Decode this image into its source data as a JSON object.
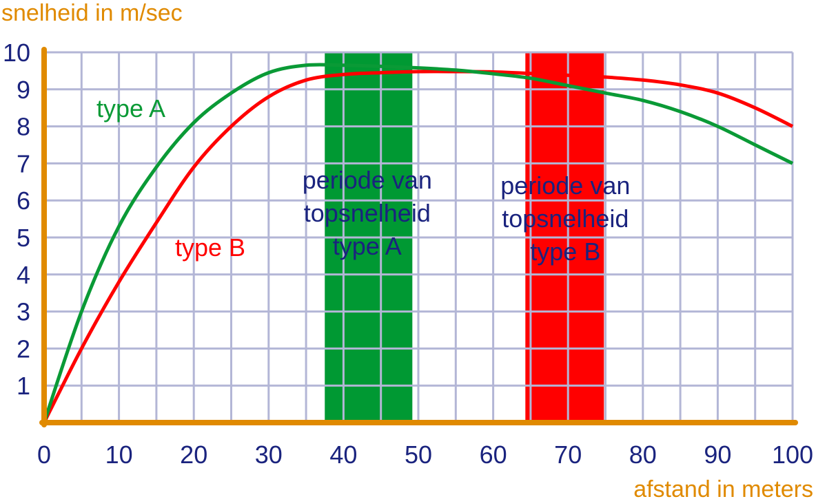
{
  "chart_data": {
    "type": "line",
    "ylabel": "snelheid in m/sec",
    "xlabel": "afstand in meters",
    "xlim": [
      0,
      100
    ],
    "ylim": [
      0,
      10
    ],
    "x_ticks": [
      "0",
      "10",
      "20",
      "30",
      "40",
      "50",
      "60",
      "70",
      "80",
      "90",
      "100"
    ],
    "y_ticks": [
      "1",
      "2",
      "3",
      "4",
      "5",
      "6",
      "7",
      "8",
      "9",
      "10"
    ],
    "grid": true,
    "colors": {
      "grid": "#b3b6d6",
      "axis": "#e08a00",
      "tick_text": "#1a237e",
      "series_a": "#0a9a36",
      "series_b": "#ff0000"
    },
    "series": [
      {
        "name": "type A",
        "color": "#0a9a36",
        "x": [
          0,
          5,
          10,
          15,
          20,
          25,
          30,
          35,
          40,
          45,
          50,
          55,
          60,
          65,
          70,
          75,
          80,
          85,
          90,
          95,
          100
        ],
        "y": [
          0,
          3.0,
          5.3,
          6.9,
          8.1,
          8.9,
          9.45,
          9.65,
          9.65,
          9.62,
          9.58,
          9.52,
          9.42,
          9.3,
          9.1,
          8.9,
          8.7,
          8.4,
          8.0,
          7.5,
          7.0
        ]
      },
      {
        "name": "type B",
        "color": "#ff0000",
        "x": [
          0,
          5,
          10,
          15,
          20,
          25,
          30,
          35,
          40,
          45,
          50,
          55,
          60,
          65,
          70,
          75,
          80,
          85,
          90,
          95,
          100
        ],
        "y": [
          0,
          2.0,
          3.8,
          5.4,
          6.9,
          8.0,
          8.8,
          9.25,
          9.4,
          9.45,
          9.48,
          9.48,
          9.47,
          9.43,
          9.38,
          9.33,
          9.25,
          9.12,
          8.9,
          8.5,
          8.0
        ]
      }
    ],
    "regions": [
      {
        "label_lines": [
          "periode van",
          "topsnelheid",
          "type A"
        ],
        "x_start": 37.5,
        "x_end": 49.2,
        "color": "#009933"
      },
      {
        "label_lines": [
          "periode van",
          "topsnelheid",
          "type B"
        ],
        "x_start": 64.3,
        "x_end": 74.8,
        "color": "#ff0000"
      }
    ]
  }
}
